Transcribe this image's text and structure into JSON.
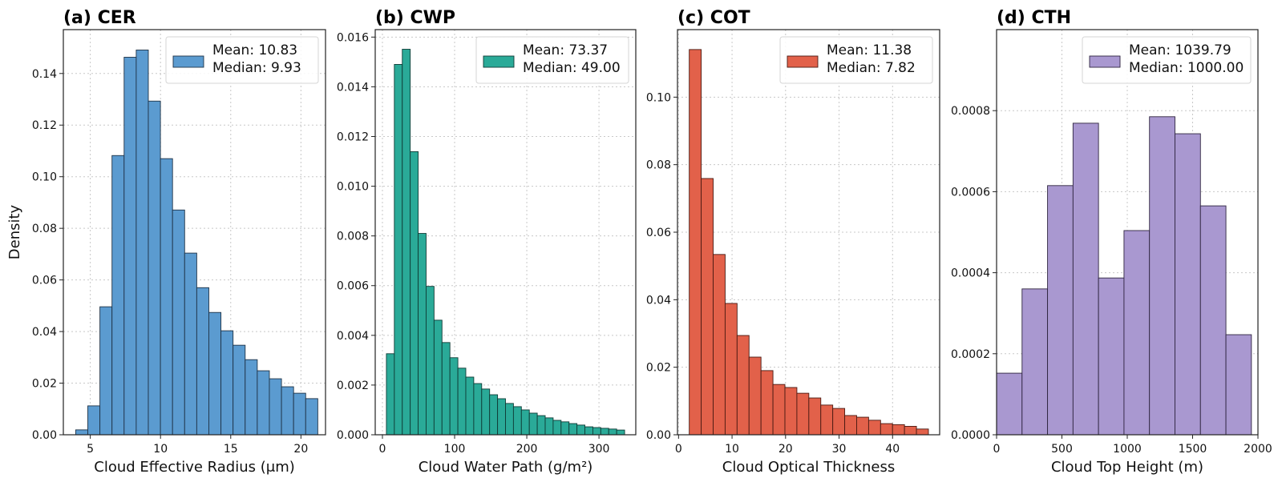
{
  "chart_data": [
    {
      "type": "bar",
      "panel": "a",
      "title": "(a) CER",
      "xlabel": "Cloud Effective Radius (μm)",
      "ylabel": "Density",
      "xlim": [
        3.08,
        21.75
      ],
      "ylim": [
        0,
        0.157
      ],
      "xticks": [
        5,
        10,
        15,
        20
      ],
      "yticks": [
        0.0,
        0.02,
        0.04,
        0.06,
        0.08,
        0.1,
        0.12,
        0.14
      ],
      "ytick_decimals": 2,
      "grid": true,
      "color": "#5b9bd0",
      "edge_color": "#1f3347",
      "legend": {
        "placement": "top-right",
        "lines": [
          "Mean: 10.83",
          "Median: 9.93"
        ]
      },
      "bin_start": 3.96,
      "bin_width": 0.862,
      "values": [
        0.0019,
        0.0112,
        0.0496,
        0.1082,
        0.1463,
        0.1491,
        0.1293,
        0.107,
        0.0871,
        0.0704,
        0.057,
        0.0474,
        0.0403,
        0.0347,
        0.0291,
        0.0248,
        0.0217,
        0.0186,
        0.0161,
        0.014
      ]
    },
    {
      "type": "bar",
      "panel": "b",
      "title": "(b) CWP",
      "xlabel": "Cloud Water Path (g/m²)",
      "ylabel": "",
      "xlim": [
        -10,
        351
      ],
      "ylim": [
        0,
        0.0163
      ],
      "xticks": [
        0,
        100,
        200,
        300
      ],
      "yticks": [
        0.0,
        0.002,
        0.004,
        0.006,
        0.008,
        0.01,
        0.012,
        0.014,
        0.016
      ],
      "ytick_decimals": 3,
      "grid": true,
      "color": "#2aaa98",
      "edge_color": "#0f3b35",
      "legend": {
        "placement": "top-right",
        "lines": [
          "Mean: 73.37",
          "Median: 49.00"
        ]
      },
      "bin_start": 5.5,
      "bin_width": 11.0,
      "values": [
        0.00326,
        0.0149,
        0.01551,
        0.01139,
        0.0081,
        0.00597,
        0.00461,
        0.00371,
        0.0031,
        0.00268,
        0.00232,
        0.00206,
        0.00184,
        0.00161,
        0.00145,
        0.00126,
        0.00113,
        0.001,
        0.00087,
        0.00077,
        0.00068,
        0.00058,
        0.00052,
        0.00045,
        0.00039,
        0.00032,
        0.00029,
        0.00026,
        0.00023,
        0.00019
      ]
    },
    {
      "type": "bar",
      "panel": "c",
      "title": "(c) COT",
      "xlabel": "Cloud Optical Thickness",
      "ylabel": "",
      "xlim": [
        -0.2,
        48.8
      ],
      "ylim": [
        0,
        0.12
      ],
      "xticks": [
        0,
        10,
        20,
        30,
        40
      ],
      "yticks": [
        0.0,
        0.02,
        0.04,
        0.06,
        0.08,
        0.1
      ],
      "ytick_decimals": 2,
      "grid": true,
      "color": "#e2614a",
      "edge_color": "#4a1a12",
      "legend": {
        "placement": "top-right",
        "lines": [
          "Mean: 11.38",
          "Median: 7.82"
        ]
      },
      "bin_start": 2.0,
      "bin_width": 2.235,
      "values": [
        0.1141,
        0.0759,
        0.0534,
        0.0389,
        0.0294,
        0.023,
        0.019,
        0.0149,
        0.014,
        0.0123,
        0.0109,
        0.0088,
        0.0078,
        0.0057,
        0.0052,
        0.0043,
        0.0033,
        0.003,
        0.0025,
        0.0017
      ]
    },
    {
      "type": "bar",
      "panel": "d",
      "title": "(d) CTH",
      "xlabel": "Cloud Top Height (m)",
      "ylabel": "",
      "xlim": [
        0,
        2000
      ],
      "ylim": [
        0,
        0.001
      ],
      "xticks": [
        0,
        500,
        1000,
        1500,
        2000
      ],
      "yticks": [
        0.0,
        0.0002,
        0.0004,
        0.0006,
        0.0008
      ],
      "ytick_decimals": 4,
      "grid": true,
      "color": "#a998d0",
      "edge_color": "#2f2540",
      "legend": {
        "placement": "top-right",
        "lines": [
          "Mean: 1039.79",
          "Median: 1000.00"
        ]
      },
      "bin_start": 0,
      "bin_width": 195,
      "values": [
        0.000152,
        0.00036,
        0.000615,
        0.000769,
        0.000387,
        0.000504,
        0.000785,
        0.000743,
        0.000565,
        0.000247
      ]
    }
  ]
}
